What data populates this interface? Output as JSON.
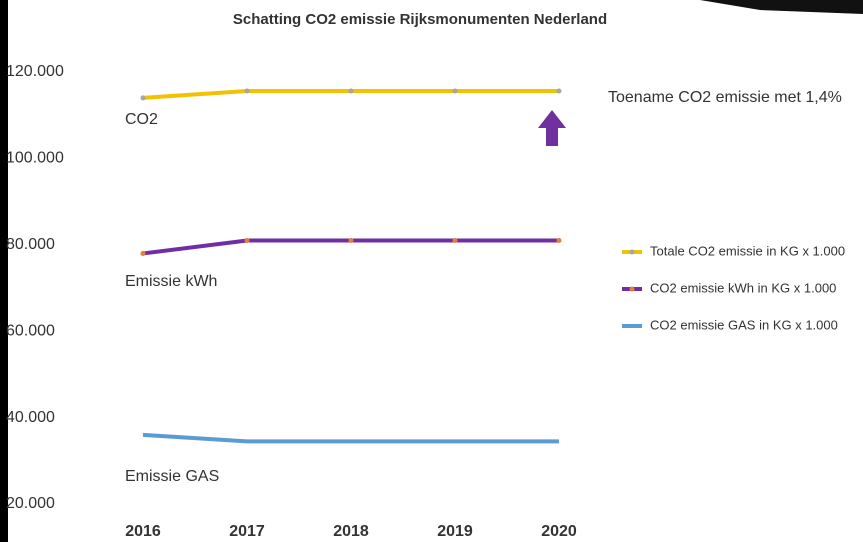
{
  "chart_data": {
    "type": "line",
    "title": "Schatting CO2 emissie Rijksmonumenten Nederland",
    "categories": [
      "2016",
      "2017",
      "2018",
      "2019",
      "2020"
    ],
    "series": [
      {
        "name": "Totale CO2 emissie in KG x 1.000",
        "color": "#f2c200",
        "marker_color": "#a6a6a6",
        "values": [
          114000,
          115600,
          115600,
          115600,
          115600
        ]
      },
      {
        "name": "CO2 emissie kWh in KG x 1.000",
        "color": "#6f2da8",
        "marker_color": "#ed7d31",
        "values": [
          78000,
          81000,
          81000,
          81000,
          81000
        ]
      },
      {
        "name": "CO2 emissie GAS in KG x 1.000",
        "color": "#5b9bd5",
        "values": [
          36000,
          34500,
          34500,
          34500,
          34500
        ]
      }
    ],
    "ylim": [
      20000,
      120000
    ],
    "yticks": [
      {
        "value": 20000,
        "label": "20.000"
      },
      {
        "value": 40000,
        "label": "40.000"
      },
      {
        "value": 60000,
        "label": "60.000"
      },
      {
        "value": 80000,
        "label": "80.000"
      },
      {
        "value": 100000,
        "label": "100.000"
      },
      {
        "value": 120000,
        "label": "120.000"
      }
    ],
    "annotations": [
      "CO2",
      "Emissie kWh",
      "Emissie GAS",
      "Toename CO2 emissie met 1,4%"
    ],
    "legend": "right"
  }
}
